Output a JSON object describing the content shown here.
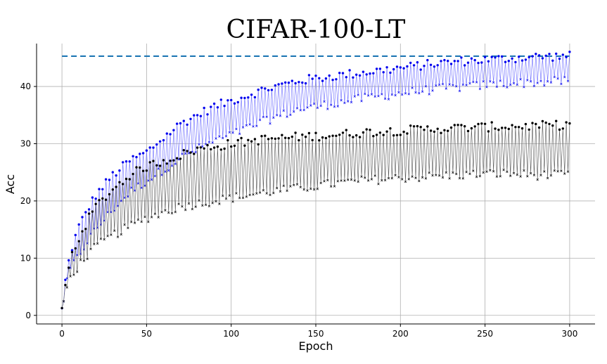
{
  "chart_data": {
    "type": "line",
    "title": "CIFAR-100-LT",
    "xlabel": "Epoch",
    "ylabel": "Acc",
    "xlim": [
      -15,
      315
    ],
    "ylim": [
      -1.5,
      47.5
    ],
    "xticks": [
      0,
      50,
      100,
      150,
      200,
      250,
      300
    ],
    "yticks": [
      0,
      10,
      20,
      30,
      40
    ],
    "grid": true,
    "colors": {
      "blue": "#0000ee",
      "blue_line": "#6b6bff",
      "black": "#000000",
      "black_line": "#555555",
      "reference": "#1f77b4"
    },
    "reference_line": {
      "y": 45.3,
      "x_range": [
        0,
        300
      ],
      "style": "dashed"
    },
    "series": [
      {
        "color": "blue",
        "pattern": "oscillating",
        "upper_envelope": {
          "x": [
            0,
            2,
            5,
            10,
            15,
            20,
            30,
            40,
            50,
            60,
            70,
            80,
            90,
            100,
            120,
            140,
            160,
            180,
            200,
            220,
            240,
            260,
            280,
            300
          ],
          "y": [
            1,
            6,
            11,
            15.5,
            18.5,
            21,
            24.5,
            27,
            28.5,
            31,
            33.5,
            35,
            36.5,
            37.5,
            39.5,
            41,
            41.8,
            42.5,
            43.2,
            44,
            44.5,
            44.8,
            45.2,
            45.3
          ]
        },
        "lower_envelope": {
          "x": [
            0,
            2,
            5,
            10,
            15,
            20,
            30,
            40,
            50,
            60,
            70,
            80,
            90,
            100,
            120,
            140,
            160,
            180,
            200,
            220,
            240,
            260,
            280,
            300
          ],
          "y": [
            1,
            4.5,
            8,
            10.5,
            13,
            15,
            18.5,
            21.5,
            23.5,
            25.5,
            27.5,
            29,
            30.5,
            31.5,
            34,
            36,
            37,
            38,
            38.8,
            39.5,
            40,
            40.5,
            40.7,
            41
          ]
        }
      },
      {
        "color": "black",
        "pattern": "oscillating",
        "upper_envelope": {
          "x": [
            0,
            2,
            5,
            10,
            15,
            20,
            30,
            40,
            50,
            60,
            70,
            80,
            90,
            100,
            120,
            140,
            160,
            180,
            200,
            220,
            240,
            260,
            280,
            300
          ],
          "y": [
            1,
            5,
            10,
            13.5,
            16.5,
            19,
            22,
            24.5,
            26,
            27,
            28,
            29,
            29.5,
            30,
            30.8,
            31.2,
            31.5,
            32,
            32.3,
            32.6,
            32.8,
            33,
            33.1,
            33.3
          ]
        },
        "lower_envelope": {
          "x": [
            0,
            2,
            5,
            10,
            15,
            20,
            30,
            40,
            50,
            60,
            70,
            80,
            90,
            100,
            120,
            140,
            160,
            180,
            200,
            220,
            240,
            260,
            280,
            300
          ],
          "y": [
            1,
            4,
            6.5,
            8.8,
            10.5,
            12,
            14,
            15.5,
            17,
            18,
            19,
            19.5,
            20,
            20.5,
            21.5,
            22.2,
            23,
            23.6,
            24,
            24.3,
            24.6,
            24.8,
            24.5,
            24.5
          ]
        }
      }
    ]
  }
}
